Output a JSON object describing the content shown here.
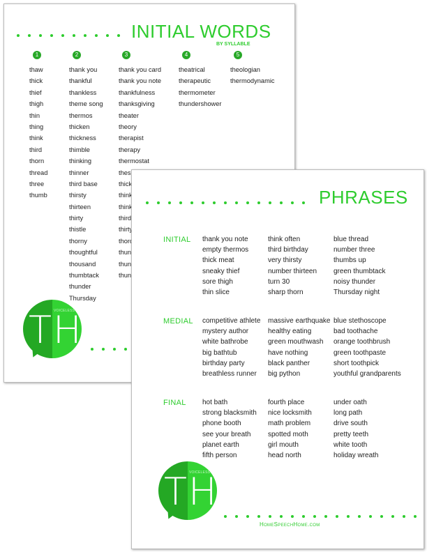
{
  "back_page": {
    "title": "INITIAL WORDS",
    "subtitle": "BY SYLLABLE",
    "columns": [
      {
        "number": "1",
        "words": [
          "thaw",
          "thick",
          "thief",
          "thigh",
          "thin",
          "thing",
          "think",
          "third",
          "thorn",
          "thread",
          "three",
          "thumb"
        ]
      },
      {
        "number": "2",
        "words": [
          "thank you",
          "thankful",
          "thankless",
          "theme song",
          "thermos",
          "thicken",
          "thickness",
          "thimble",
          "thinking",
          "thinner",
          "third base",
          "thirsty",
          "thirteen",
          "thirty",
          "thistle",
          "thorny",
          "thoughtful",
          "thousand",
          "thumbtack",
          "thunder",
          "Thursday"
        ]
      },
      {
        "number": "3",
        "words": [
          "thank you card",
          "thank you note",
          "thankfulness",
          "thanksgiving",
          "theater",
          "theory",
          "therapist",
          "therapy",
          "thermostat",
          "thesa",
          "thick",
          "think",
          "think",
          "third",
          "thirty",
          "thord",
          "thund",
          "thund",
          "thund"
        ]
      },
      {
        "number": "4",
        "words": [
          "theatrical",
          "therapeutic",
          "thermometer",
          "thundershower"
        ]
      },
      {
        "number": "5",
        "words": [
          "theologian",
          "thermodynamic"
        ]
      }
    ],
    "logo": {
      "letters": "TH",
      "tag": "VOICELESS"
    }
  },
  "front_page": {
    "title": "PHRASES",
    "sections": [
      {
        "label": "INITIAL",
        "columns": [
          [
            "thank you note",
            "empty thermos",
            "thick meat",
            "sneaky thief",
            "sore thigh",
            "thin slice"
          ],
          [
            "think often",
            "third birthday",
            "very thirsty",
            "number thirteen",
            "turn 30",
            "sharp thorn"
          ],
          [
            "blue thread",
            "number three",
            "thumbs up",
            "green thumbtack",
            "noisy thunder",
            "Thursday night"
          ]
        ]
      },
      {
        "label": "MEDIAL",
        "columns": [
          [
            "competitive athlete",
            "mystery author",
            "white bathrobe",
            "big bathtub",
            "birthday party",
            "breathless runner"
          ],
          [
            "massive earthquake",
            "healthy eating",
            "green mouthwash",
            "have nothing",
            "black panther",
            "big python"
          ],
          [
            "blue stethoscope",
            "bad toothache",
            "orange toothbrush",
            "green toothpaste",
            "short toothpick",
            "youthful grandparents"
          ]
        ]
      },
      {
        "label": "FINAL",
        "columns": [
          [
            "hot bath",
            "strong blacksmith",
            "phone booth",
            "see your breath",
            "planet earth",
            "fifth person"
          ],
          [
            "fourth place",
            "nice locksmith",
            "math problem",
            "spotted moth",
            "girl mouth",
            "head north"
          ],
          [
            "under oath",
            "long path",
            "drive south",
            "pretty teeth",
            "white tooth",
            "holiday wreath"
          ]
        ]
      }
    ],
    "logo": {
      "letters": "TH",
      "tag": "VOICELESS"
    },
    "website": "HomeSpeechHome.com"
  },
  "colors": {
    "accent": "#2ecc2e",
    "dark_green": "#24a824"
  }
}
